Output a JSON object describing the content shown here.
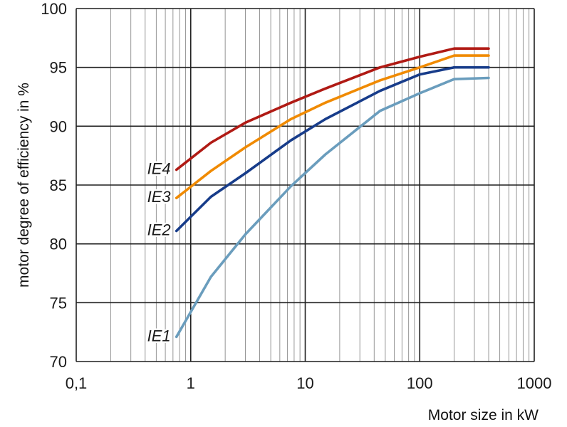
{
  "chart_data": {
    "type": "line",
    "xlabel": "Motor size in kW",
    "ylabel": "motor degree of efficiency in %",
    "xscale": "log",
    "xlim": [
      0.1,
      1000
    ],
    "ylim": [
      70,
      100
    ],
    "x_ticks": [
      {
        "value": 0.1,
        "label": "0,1"
      },
      {
        "value": 1,
        "label": "1"
      },
      {
        "value": 10,
        "label": "10"
      },
      {
        "value": 100,
        "label": "100"
      },
      {
        "value": 1000,
        "label": "1000"
      }
    ],
    "y_ticks": [
      {
        "value": 70,
        "label": "70"
      },
      {
        "value": 75,
        "label": "75"
      },
      {
        "value": 80,
        "label": "80"
      },
      {
        "value": 85,
        "label": "85"
      },
      {
        "value": 90,
        "label": "90"
      },
      {
        "value": 95,
        "label": "95"
      },
      {
        "value": 100,
        "label": "100"
      }
    ],
    "grid": true,
    "series": [
      {
        "name": "IE4",
        "color": "#b01a14",
        "x": [
          0.75,
          1.5,
          3,
          7.5,
          15,
          45,
          100,
          200,
          400
        ],
        "y": [
          86.3,
          88.6,
          90.3,
          92.0,
          93.2,
          95.0,
          95.9,
          96.6,
          96.6
        ]
      },
      {
        "name": "IE3",
        "color": "#f08a00",
        "x": [
          0.75,
          1.5,
          3,
          7.5,
          15,
          45,
          100,
          200,
          400
        ],
        "y": [
          83.9,
          86.2,
          88.2,
          90.6,
          92.0,
          93.9,
          95.0,
          96.0,
          96.0
        ]
      },
      {
        "name": "IE2",
        "color": "#173c8a",
        "x": [
          0.75,
          1.5,
          3,
          7.5,
          15,
          45,
          100,
          200,
          400
        ],
        "y": [
          81.1,
          84.0,
          86.0,
          88.8,
          90.6,
          93.0,
          94.4,
          95.0,
          95.0
        ]
      },
      {
        "name": "IE1",
        "color": "#6a9dbd",
        "x": [
          0.75,
          1.5,
          3,
          7.5,
          15,
          45,
          100,
          200,
          400
        ],
        "y": [
          72.1,
          77.2,
          80.8,
          84.9,
          87.6,
          91.3,
          92.8,
          94.0,
          94.1
        ]
      }
    ]
  }
}
